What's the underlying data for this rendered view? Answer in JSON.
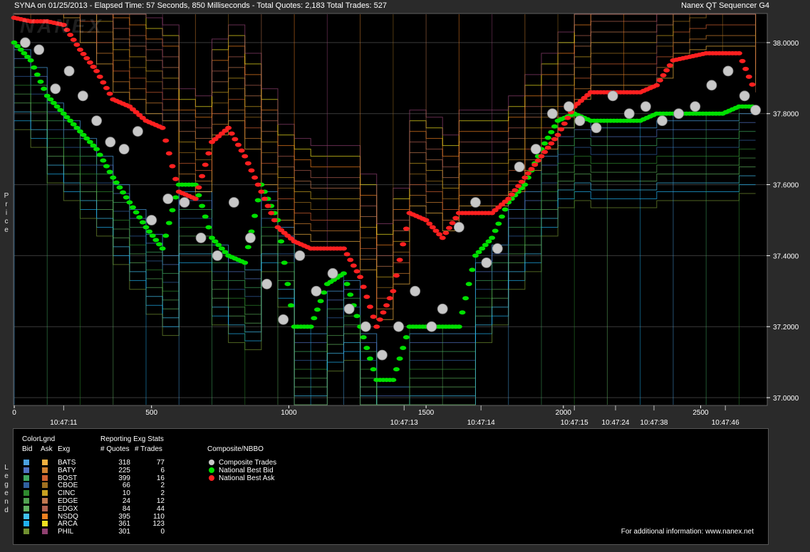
{
  "header": {
    "left": "SYNA on 01/25/2013  -  Elapsed Time: 57 Seconds, 850 Milliseconds  -  Total Quotes: 2,183  Total Trades: 527",
    "right": "Nanex QT Sequencer G4"
  },
  "watermark": "NANEX",
  "y_axis_label": "Price",
  "legend_side_label": "Legend",
  "chart_data": {
    "type": "line",
    "ylim": [
      36.98,
      38.08
    ],
    "xlim": [
      0,
      2740
    ],
    "y_ticks": [
      "38.0000",
      "37.8000",
      "37.6000",
      "37.4000",
      "37.2000",
      "37.0000"
    ],
    "y_tick_values": [
      38.0,
      37.8,
      37.6,
      37.4,
      37.2,
      37.0
    ],
    "x_ticks": [
      "0",
      "500",
      "1000",
      "1500",
      "2000",
      "2500"
    ],
    "x_tick_values": [
      0,
      500,
      1000,
      1500,
      2000,
      2500
    ],
    "time_labels": [
      {
        "label": "10:47:11",
        "x": 180
      },
      {
        "label": "10:47:13",
        "x": 1420
      },
      {
        "label": "10:47:14",
        "x": 1700
      },
      {
        "label": "10:47:15",
        "x": 2040
      },
      {
        "label": "10:47:24",
        "x": 2190
      },
      {
        "label": "10:47:38",
        "x": 2330
      },
      {
        "label": "10:47:46",
        "x": 2590
      }
    ],
    "series": [
      {
        "name": "National Best Bid",
        "color": "#00e000",
        "x": [
          0,
          60,
          120,
          180,
          240,
          300,
          360,
          420,
          480,
          540,
          600,
          660,
          720,
          780,
          840,
          900,
          960,
          1020,
          1080,
          1140,
          1200,
          1260,
          1320,
          1380,
          1440,
          1500,
          1560,
          1620,
          1680,
          1740,
          1800,
          1860,
          1920,
          1980,
          2040,
          2100,
          2160,
          2220,
          2280,
          2340,
          2400,
          2460,
          2520,
          2580,
          2640,
          2700
        ],
        "values": [
          38.0,
          37.95,
          37.85,
          37.8,
          37.75,
          37.7,
          37.62,
          37.55,
          37.48,
          37.42,
          37.6,
          37.6,
          37.45,
          37.4,
          37.38,
          37.6,
          37.5,
          37.2,
          37.2,
          37.32,
          37.35,
          37.2,
          37.05,
          37.05,
          37.2,
          37.2,
          37.2,
          37.2,
          37.4,
          37.45,
          37.55,
          37.6,
          37.7,
          37.78,
          37.8,
          37.78,
          37.78,
          37.78,
          37.78,
          37.8,
          37.8,
          37.8,
          37.8,
          37.8,
          37.82,
          37.82
        ]
      },
      {
        "name": "National Best Ask",
        "color": "#ff2020",
        "x": [
          0,
          60,
          120,
          180,
          240,
          300,
          360,
          420,
          480,
          540,
          600,
          660,
          720,
          780,
          840,
          900,
          960,
          1020,
          1080,
          1140,
          1200,
          1260,
          1320,
          1380,
          1440,
          1500,
          1560,
          1620,
          1680,
          1740,
          1800,
          1860,
          1920,
          1980,
          2040,
          2100,
          2160,
          2220,
          2280,
          2340,
          2400,
          2460,
          2520,
          2580,
          2640,
          2700
        ],
        "values": [
          38.07,
          38.06,
          38.06,
          38.05,
          37.98,
          37.92,
          37.84,
          37.82,
          37.78,
          37.76,
          37.58,
          37.56,
          37.72,
          37.76,
          37.68,
          37.58,
          37.48,
          37.44,
          37.42,
          37.42,
          37.42,
          37.34,
          37.2,
          37.3,
          37.52,
          37.5,
          37.45,
          37.52,
          37.52,
          37.52,
          37.56,
          37.62,
          37.68,
          37.74,
          37.82,
          37.86,
          37.86,
          37.86,
          37.86,
          37.88,
          37.95,
          37.96,
          37.97,
          37.97,
          37.97,
          37.86
        ]
      },
      {
        "name": "Composite Trades",
        "color": "#c8c8c8",
        "x": [
          40,
          90,
          150,
          200,
          250,
          300,
          350,
          400,
          450,
          500,
          560,
          620,
          680,
          740,
          800,
          860,
          920,
          980,
          1040,
          1100,
          1160,
          1220,
          1280,
          1340,
          1400,
          1460,
          1520,
          1560,
          1620,
          1680,
          1720,
          1760,
          1840,
          1900,
          1960,
          2020,
          2060,
          2120,
          2180,
          2240,
          2300,
          2360,
          2420,
          2480,
          2540,
          2600,
          2660,
          2700
        ],
        "values": [
          38.0,
          37.98,
          37.87,
          37.92,
          37.85,
          37.78,
          37.72,
          37.7,
          37.75,
          37.5,
          37.56,
          37.55,
          37.45,
          37.4,
          37.55,
          37.45,
          37.32,
          37.22,
          37.4,
          37.3,
          37.35,
          37.25,
          37.2,
          37.12,
          37.2,
          37.3,
          37.2,
          37.25,
          37.48,
          37.55,
          37.38,
          37.42,
          37.65,
          37.7,
          37.8,
          37.82,
          37.78,
          37.76,
          37.85,
          37.8,
          37.82,
          37.78,
          37.8,
          37.82,
          37.88,
          37.92,
          37.85,
          37.81
        ]
      }
    ]
  },
  "legend": {
    "headers": {
      "colorlgnd": "ColorLgnd",
      "bid": "Bid",
      "ask": "Ask",
      "exg": "Exg",
      "stats": "Reporting Exg Stats",
      "quotes": "# Quotes",
      "trades": "# Trades",
      "composite": "Composite/NBBO"
    },
    "rows": [
      {
        "exg": "BATS",
        "quotes": "318",
        "trades": "77",
        "bid_color": "#4aa0e0",
        "ask_color": "#f0b040"
      },
      {
        "exg": "BATY",
        "quotes": "225",
        "trades": "6",
        "bid_color": "#5070c0",
        "ask_color": "#d08030"
      },
      {
        "exg": "BOST",
        "quotes": "399",
        "trades": "16",
        "bid_color": "#3fa860",
        "ask_color": "#d06030"
      },
      {
        "exg": "CBOE",
        "quotes": "66",
        "trades": "2",
        "bid_color": "#3060a0",
        "ask_color": "#a07020"
      },
      {
        "exg": "CINC",
        "quotes": "10",
        "trades": "2",
        "bid_color": "#2e8a2e",
        "ask_color": "#c8a020"
      },
      {
        "exg": "EDGE",
        "quotes": "24",
        "trades": "12",
        "bid_color": "#50a050",
        "ask_color": "#c07850"
      },
      {
        "exg": "EDGX",
        "quotes": "84",
        "trades": "44",
        "bid_color": "#60b060",
        "ask_color": "#b06050"
      },
      {
        "exg": "NSDQ",
        "quotes": "395",
        "trades": "110",
        "bid_color": "#40c0f0",
        "ask_color": "#f08020"
      },
      {
        "exg": "ARCA",
        "quotes": "361",
        "trades": "123",
        "bid_color": "#20b0f0",
        "ask_color": "#f0e020"
      },
      {
        "exg": "PHIL",
        "quotes": "301",
        "trades": "0",
        "bid_color": "#709030",
        "ask_color": "#904070"
      }
    ],
    "composite_items": [
      {
        "label": "Composite Trades",
        "color": "#c8c8c8"
      },
      {
        "label": "National Best Bid",
        "color": "#00e000"
      },
      {
        "label": "National Best Ask",
        "color": "#ff2020"
      }
    ],
    "footer": "For additional information: www.nanex.net"
  }
}
